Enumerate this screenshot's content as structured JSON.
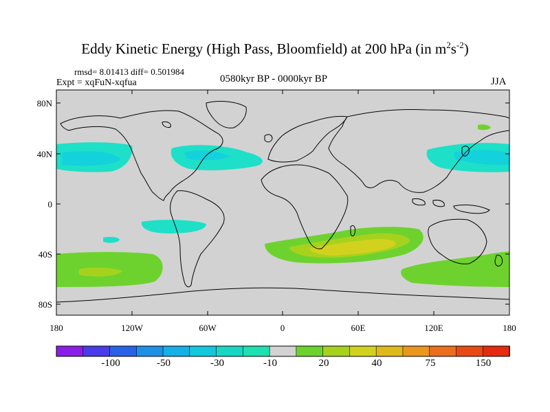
{
  "header": {
    "title_main": "Eddy Kinetic Energy (High Pass, Bloomfield) at 200 hPa (in m",
    "title_sup1": "2",
    "title_mid": "s",
    "title_sup2": "-2",
    "title_end": ")",
    "stats": "rmsd= 8.01413 diff= 0.501984",
    "experiment": "Expt = xqFuN-xqfua",
    "period": "0580kyr BP - 0000kyr BP",
    "season": "JJA"
  },
  "axes": {
    "lat_labels": [
      "80N",
      "40N",
      "0",
      "40S",
      "80S"
    ],
    "lon_labels": [
      "180",
      "120W",
      "60W",
      "0",
      "60E",
      "120E",
      "180"
    ]
  },
  "colorbar": {
    "labels": [
      "-100",
      "-50",
      "-30",
      "-10",
      "20",
      "40",
      "75",
      "150"
    ],
    "colors": [
      "#8a1ee6",
      "#4a3ce8",
      "#2a62e6",
      "#1e90e6",
      "#14b0e6",
      "#12c8dc",
      "#18d6c4",
      "#1ee0b0",
      "#d2d2d2",
      "#6ed22e",
      "#a6d21e",
      "#d2d21e",
      "#e0b81a",
      "#eb961e",
      "#ea6e1c",
      "#e84a14",
      "#e42a10"
    ]
  },
  "colors": {
    "land_background": "#d2d2d2",
    "coastline": "#000000",
    "negative_weak": "#1ee0c8",
    "negative_mid": "#14d2dc",
    "positive_weak": "#6ed22e",
    "positive_mid": "#a6d21e",
    "positive_strong": "#d2d21e"
  }
}
